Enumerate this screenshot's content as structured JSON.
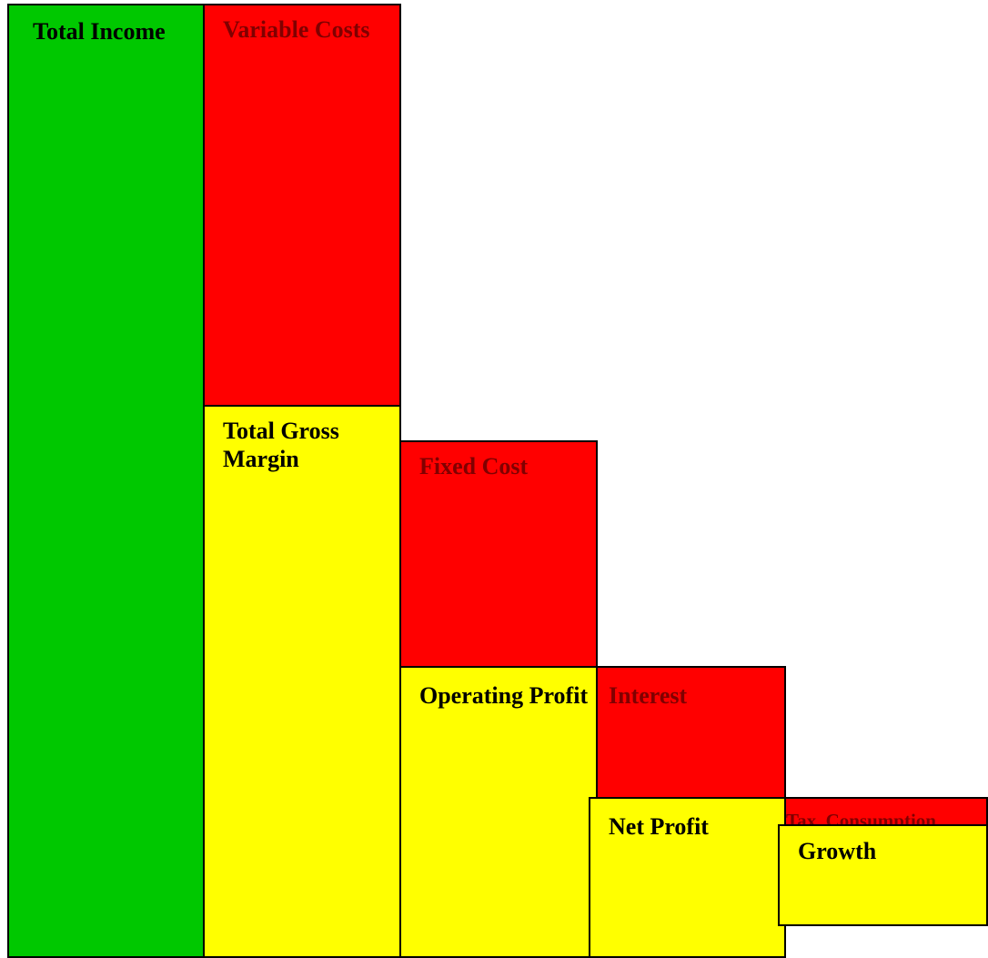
{
  "colors": {
    "income": "#00c800",
    "cost": "#ff0000",
    "profit": "#ffff00",
    "label_on_income": "#000000",
    "label_on_cost": "#800000",
    "label_on_profit": "#000000",
    "border": "#000000"
  },
  "blocks": {
    "total_income": {
      "label": "Total Income",
      "kind": "income"
    },
    "variable_costs": {
      "label": "Variable Costs",
      "kind": "cost"
    },
    "total_gross_margin": {
      "label": "Total Gross Margin",
      "kind": "profit"
    },
    "fixed_cost": {
      "label": "Fixed Cost",
      "kind": "cost"
    },
    "operating_profit": {
      "label": "Operating Profit",
      "kind": "profit"
    },
    "interest": {
      "label": "Interest",
      "kind": "cost"
    },
    "net_profit": {
      "label": "Net Profit",
      "kind": "profit"
    },
    "tax_consumption": {
      "label": "Tax, Consumption",
      "kind": "cost"
    },
    "growth": {
      "label": "Growth",
      "kind": "profit"
    }
  }
}
